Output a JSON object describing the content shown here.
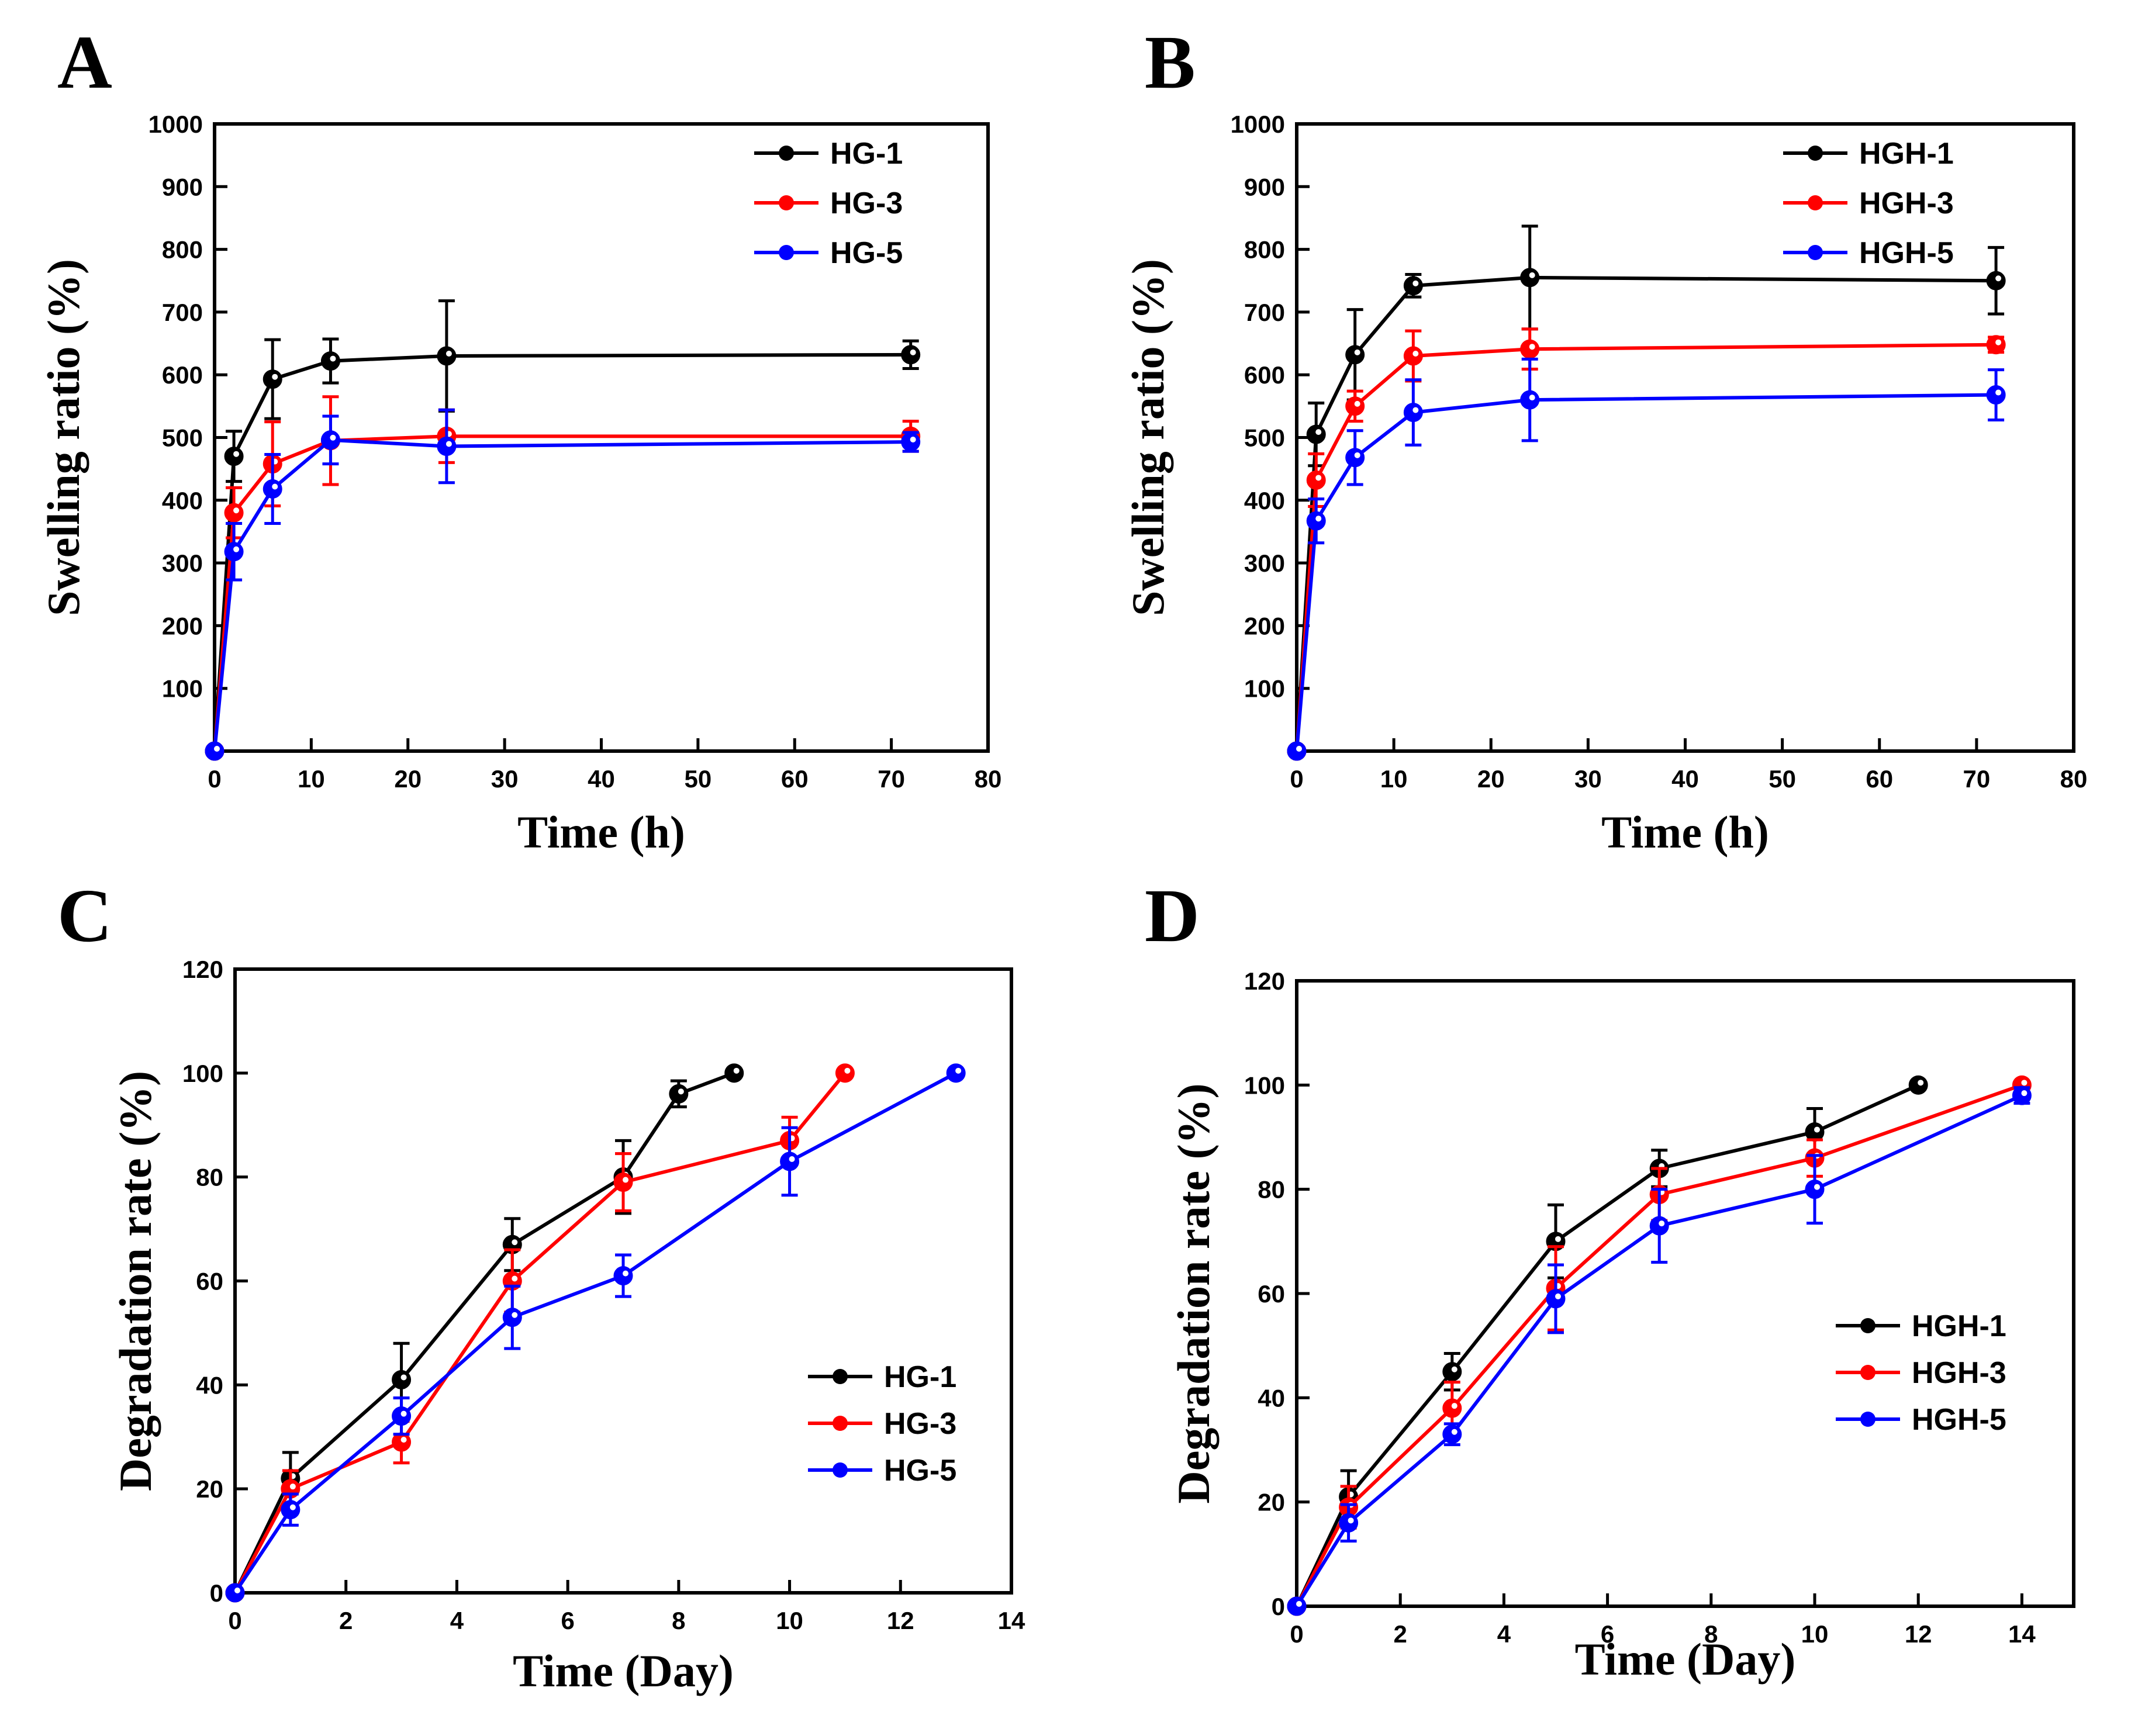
{
  "colors": {
    "HG-1": "#000000",
    "HG-3": "#ff0000",
    "HG-5": "#0000ff",
    "HGH-1": "#000000",
    "HGH-3": "#ff0000",
    "HGH-5": "#0000ff"
  },
  "chart_data": [
    {
      "panel": "A",
      "type": "line",
      "xlabel": "Time (h)",
      "ylabel": "Swelling ratio (%)",
      "xlim": [
        0,
        80
      ],
      "ylim": [
        0,
        1000
      ],
      "xticks": [
        0,
        10,
        20,
        30,
        40,
        50,
        60,
        70,
        80
      ],
      "yticks": [
        100,
        200,
        300,
        400,
        500,
        600,
        700,
        800,
        900,
        1000
      ],
      "legend_position": "top-right",
      "series": [
        {
          "name": "HG-1",
          "x": [
            0,
            2,
            6,
            12,
            24,
            72
          ],
          "values": [
            0,
            470,
            593,
            622,
            630,
            632
          ],
          "errors": [
            0,
            40,
            63,
            35,
            88,
            22
          ]
        },
        {
          "name": "HG-3",
          "x": [
            0,
            2,
            6,
            12,
            24,
            72
          ],
          "values": [
            0,
            380,
            458,
            495,
            502,
            502
          ],
          "errors": [
            0,
            40,
            67,
            70,
            42,
            24
          ]
        },
        {
          "name": "HG-5",
          "x": [
            0,
            2,
            6,
            12,
            24,
            72
          ],
          "values": [
            0,
            318,
            418,
            496,
            486,
            493
          ],
          "errors": [
            0,
            45,
            55,
            38,
            58,
            15
          ]
        }
      ]
    },
    {
      "panel": "B",
      "type": "line",
      "xlabel": "Time (h)",
      "ylabel": "Swelling ratio (%)",
      "xlim": [
        0,
        80
      ],
      "ylim": [
        0,
        1000
      ],
      "xticks": [
        0,
        10,
        20,
        30,
        40,
        50,
        60,
        70,
        80
      ],
      "yticks": [
        100,
        200,
        300,
        400,
        500,
        600,
        700,
        800,
        900,
        1000
      ],
      "legend_position": "top-right",
      "series": [
        {
          "name": "HGH-1",
          "x": [
            0,
            2,
            6,
            12,
            24,
            72
          ],
          "values": [
            0,
            505,
            632,
            742,
            755,
            750
          ],
          "errors": [
            0,
            50,
            72,
            18,
            82,
            53
          ]
        },
        {
          "name": "HGH-3",
          "x": [
            0,
            2,
            6,
            12,
            24,
            72
          ],
          "values": [
            0,
            432,
            550,
            630,
            641,
            648
          ],
          "errors": [
            0,
            42,
            24,
            40,
            32,
            12
          ]
        },
        {
          "name": "HGH-5",
          "x": [
            0,
            2,
            6,
            12,
            24,
            72
          ],
          "values": [
            0,
            367,
            468,
            540,
            560,
            568
          ],
          "errors": [
            0,
            35,
            43,
            52,
            65,
            40
          ]
        }
      ]
    },
    {
      "panel": "C",
      "type": "line",
      "xlabel": "Time (Day)",
      "ylabel": "Degradation rate (%)",
      "xlim": [
        0,
        14
      ],
      "ylim": [
        0,
        120
      ],
      "xticks": [
        0,
        2,
        4,
        6,
        8,
        10,
        12,
        14
      ],
      "yticks": [
        0,
        20,
        40,
        60,
        80,
        100,
        120
      ],
      "legend_position": "bottom-right",
      "series": [
        {
          "name": "HG-1",
          "x": [
            0,
            1,
            3,
            5,
            7,
            8,
            9
          ],
          "values": [
            0,
            22,
            41,
            67,
            80,
            96,
            100
          ],
          "errors": [
            0,
            5,
            7,
            5,
            7,
            2.5,
            0
          ]
        },
        {
          "name": "HG-3",
          "x": [
            0,
            1,
            3,
            5,
            7,
            10,
            11
          ],
          "values": [
            0,
            20,
            29,
            60,
            79,
            87,
            100
          ],
          "errors": [
            0,
            3.5,
            4,
            6,
            5.5,
            4.5,
            0
          ]
        },
        {
          "name": "HG-5",
          "x": [
            0,
            1,
            3,
            5,
            7,
            10,
            13
          ],
          "values": [
            0,
            16,
            34,
            53,
            61,
            83,
            100
          ],
          "errors": [
            0,
            3,
            3.5,
            6,
            4,
            6.5,
            0
          ]
        }
      ]
    },
    {
      "panel": "D",
      "type": "line",
      "xlabel": "Time (Day)",
      "ylabel": "Degradation rate (%)",
      "xlim": [
        0,
        15
      ],
      "ylim": [
        0,
        120
      ],
      "xticks": [
        0,
        2,
        4,
        6,
        8,
        10,
        12,
        14
      ],
      "yticks": [
        0,
        20,
        40,
        60,
        80,
        100,
        120
      ],
      "legend_position": "center-right",
      "series": [
        {
          "name": "HGH-1",
          "x": [
            0,
            1,
            3,
            5,
            7,
            10,
            12
          ],
          "values": [
            0,
            21,
            45,
            70,
            84,
            91,
            100
          ],
          "errors": [
            0,
            5,
            3.5,
            7,
            3.5,
            4.5,
            0
          ]
        },
        {
          "name": "HGH-3",
          "x": [
            0,
            1,
            3,
            5,
            7,
            10,
            14
          ],
          "values": [
            0,
            19,
            38,
            61,
            79,
            86,
            100
          ],
          "errors": [
            0,
            4,
            5,
            8,
            5,
            3.5,
            0
          ]
        },
        {
          "name": "HGH-5",
          "x": [
            0,
            1,
            3,
            5,
            7,
            10,
            14
          ],
          "values": [
            0,
            16,
            33,
            59,
            73,
            80,
            98
          ],
          "errors": [
            0,
            3.5,
            2,
            6.5,
            7,
            6.5,
            1.5
          ]
        }
      ]
    }
  ]
}
